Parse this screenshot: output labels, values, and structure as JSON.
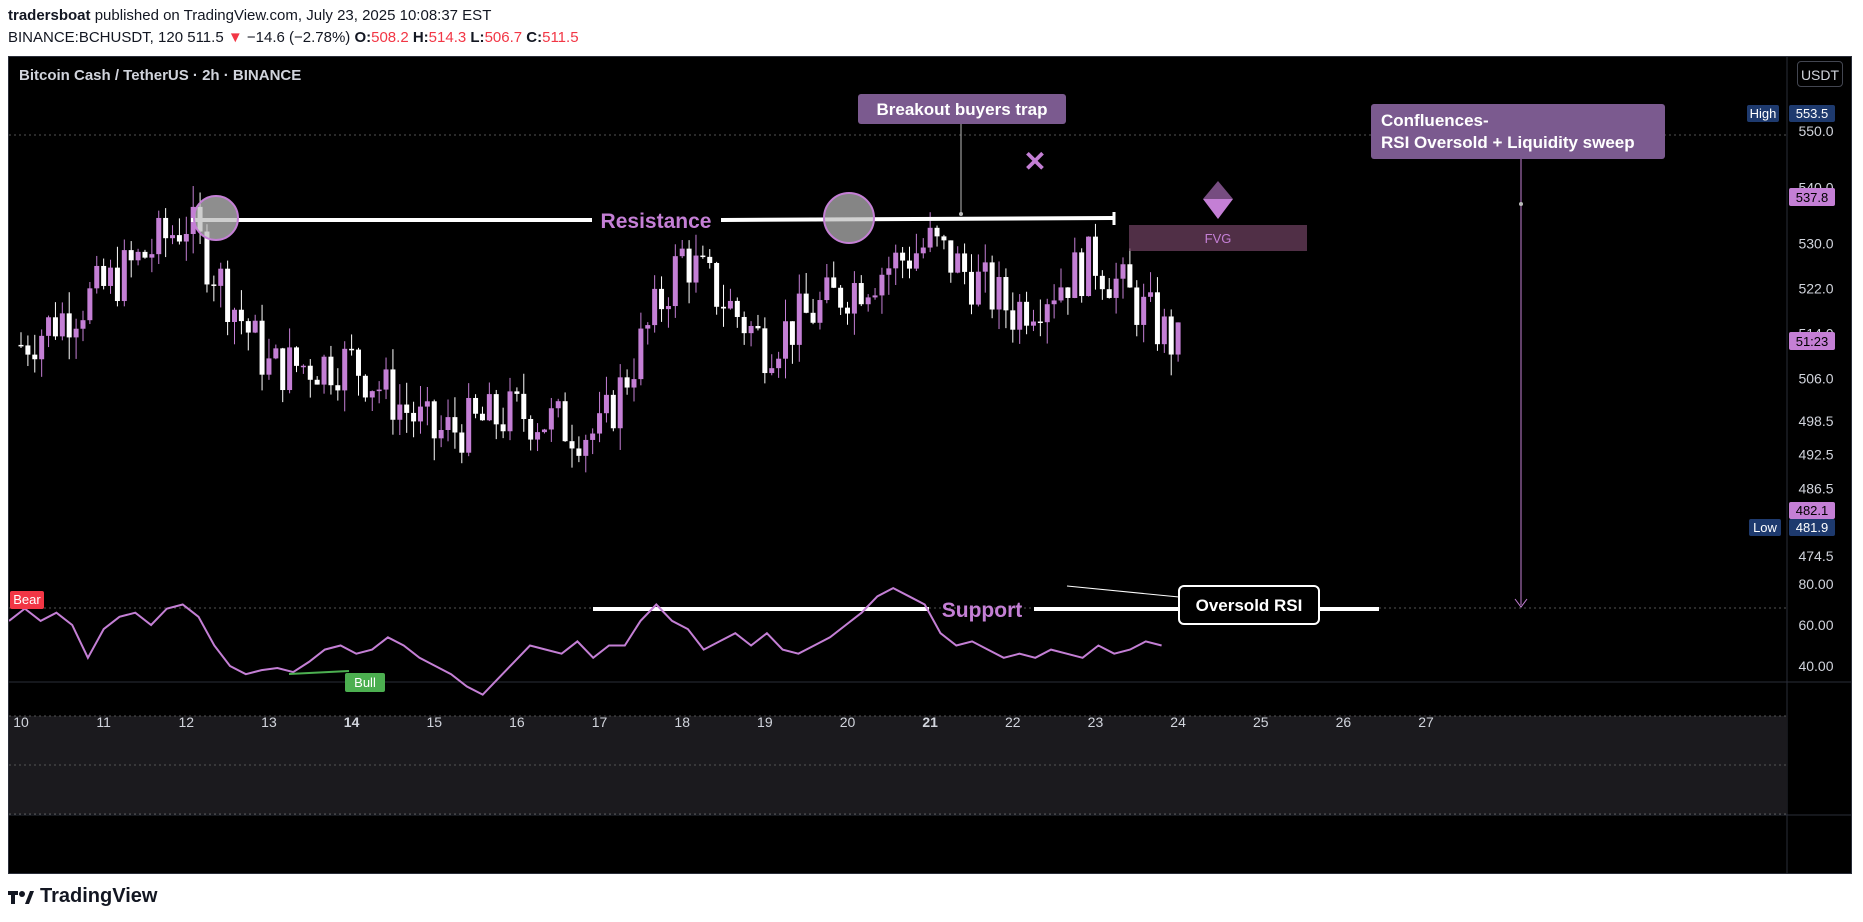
{
  "header": {
    "author": "tradersboat",
    "published_text": "published on TradingView.com, July 23, 2025 10:08:37 EST",
    "symbol_line": "BINANCE:BCHUSDT, 120",
    "last": "511.5",
    "change_arrow": "▼",
    "change": "−14.6 (−2.78%)",
    "o_label": "O:",
    "o_value": "508.2",
    "h_label": "H:",
    "h_value": "514.3",
    "l_label": "L:",
    "l_value": "506.7",
    "c_label": "C:",
    "c_value": "511.5"
  },
  "chart_title": "Bitcoin Cash / TetherUS · 2h · BINANCE",
  "unit_button": "USDT",
  "brand": "TradingView",
  "colors": {
    "background": "#000000",
    "candle_up": "#c47fd5",
    "candle_down": "#ffffff",
    "accent_purple": "#c47fd5",
    "annotation_box": "#7b5a8f",
    "high_badge": "#1e3a6e",
    "bear_badge": "#f23645",
    "bull_badge": "#4caf50"
  },
  "price_axis": {
    "ticks": [
      "550.0",
      "540.0",
      "530.0",
      "522.0",
      "514.0",
      "506.0",
      "498.5",
      "492.5",
      "486.5",
      "474.5"
    ],
    "high_label": "High",
    "high_value": "553.5",
    "low_label": "Low",
    "low_value": "481.9",
    "fvg_level": "537.8",
    "countdown": "51:23",
    "support_level": "482.1"
  },
  "rsi_axis": {
    "ticks": [
      "80.00",
      "60.00",
      "40.00"
    ]
  },
  "time_axis": {
    "ticks": [
      "10",
      "11",
      "12",
      "13",
      "14",
      "15",
      "16",
      "17",
      "18",
      "19",
      "20",
      "21",
      "22",
      "23",
      "24",
      "25",
      "26",
      "27"
    ],
    "bold": [
      "14",
      "21"
    ]
  },
  "annotations": {
    "resistance": "Resistance",
    "support": "Support",
    "breakout": "Breakout buyers trap",
    "fvg": "FVG",
    "confluence_line1": "Confluences-",
    "confluence_line2": "RSI Oversold + Liquidity sweep",
    "oversold": "Oversold RSI",
    "bear": "Bear",
    "bull": "Bull",
    "x_mark": "✕"
  },
  "chart_data": {
    "type": "candlestick",
    "symbol": "BCHUSDT",
    "interval": "2h",
    "x": [
      "10",
      "11",
      "12",
      "13",
      "14",
      "15",
      "16",
      "17",
      "18",
      "19",
      "20",
      "21",
      "22",
      "23",
      "24"
    ],
    "ylim": [
      470,
      560
    ],
    "support": 482.1,
    "resistance": 539.0,
    "high": 553.5,
    "low": 481.9,
    "fvg_zone": [
      534,
      538
    ],
    "last_candle": {
      "open": 508.2,
      "high": 514.3,
      "low": 506.7,
      "close": 511.5
    },
    "daily_closes": [
      {
        "day": "10",
        "close": 512
      },
      {
        "day": "11",
        "close": 522
      },
      {
        "day": "12",
        "close": 534
      },
      {
        "day": "13",
        "close": 508
      },
      {
        "day": "14",
        "close": 509
      },
      {
        "day": "15",
        "close": 496
      },
      {
        "day": "16",
        "close": 500
      },
      {
        "day": "17",
        "close": 496
      },
      {
        "day": "18",
        "close": 528
      },
      {
        "day": "19",
        "close": 512
      },
      {
        "day": "20",
        "close": 522
      },
      {
        "day": "21",
        "close": 530
      },
      {
        "day": "22",
        "close": 518
      },
      {
        "day": "23",
        "close": 527
      },
      {
        "day": "24",
        "close": 511.5
      }
    ],
    "rsi": {
      "ylim": [
        25,
        85
      ],
      "levels": [
        70,
        50,
        30
      ],
      "values": [
        62,
        68,
        62,
        66,
        60,
        44,
        58,
        64,
        66,
        60,
        68,
        70,
        64,
        50,
        40,
        36,
        38,
        39,
        37,
        42,
        48,
        50,
        46,
        48,
        54,
        50,
        44,
        40,
        36,
        30,
        26,
        34,
        42,
        50,
        48,
        46,
        52,
        44,
        50,
        50,
        62,
        70,
        62,
        58,
        48,
        52,
        56,
        50,
        56,
        48,
        46,
        50,
        54,
        60,
        66,
        74,
        78,
        74,
        70,
        56,
        50,
        52,
        48,
        44,
        46,
        44,
        48,
        46,
        44,
        50,
        46,
        48,
        52,
        50
      ]
    }
  }
}
